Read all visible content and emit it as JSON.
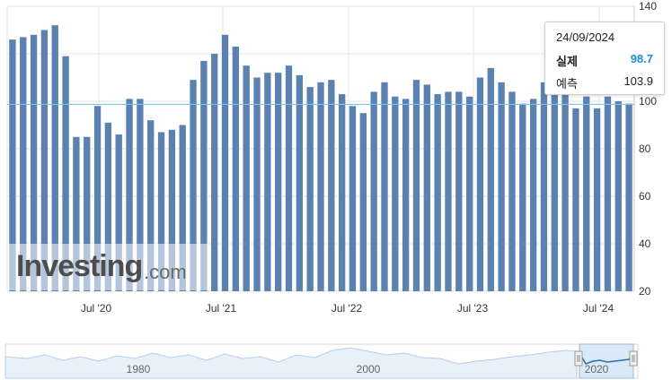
{
  "chart_data": {
    "type": "bar",
    "ylim": [
      20,
      140
    ],
    "yticks": [
      20,
      40,
      60,
      80,
      100,
      120,
      140
    ],
    "x_tick_labels": [
      "Jul '20",
      "Jul '21",
      "Jul '22",
      "Jul '23",
      "Jul '24"
    ],
    "reference_line": 98.7,
    "values": [
      126,
      127,
      128,
      130,
      132,
      119,
      85,
      85,
      98,
      91,
      86,
      101,
      101,
      92,
      87,
      88,
      90,
      109,
      117,
      120,
      128,
      123,
      115,
      110,
      112,
      112,
      115,
      111,
      106,
      108,
      109,
      103,
      98,
      95,
      104,
      108,
      102,
      101,
      109,
      107,
      103,
      104,
      104,
      102,
      110,
      114,
      108,
      104,
      99,
      101,
      108,
      111,
      104,
      97,
      102,
      97,
      102,
      100,
      99
    ]
  },
  "tooltip": {
    "date": "24/09/2024",
    "actual_label": "실제",
    "actual_value": "98.7",
    "forecast_label": "예측",
    "forecast_value": "103.9"
  },
  "watermark": {
    "brand": "Investing",
    "domain": ".com"
  },
  "navigator": {
    "labels": [
      "1980",
      "2000",
      "2020"
    ]
  },
  "colors": {
    "bar": "#5b81b1",
    "reference_line": "#7ec3ee",
    "grid": "#e6e6e6"
  }
}
